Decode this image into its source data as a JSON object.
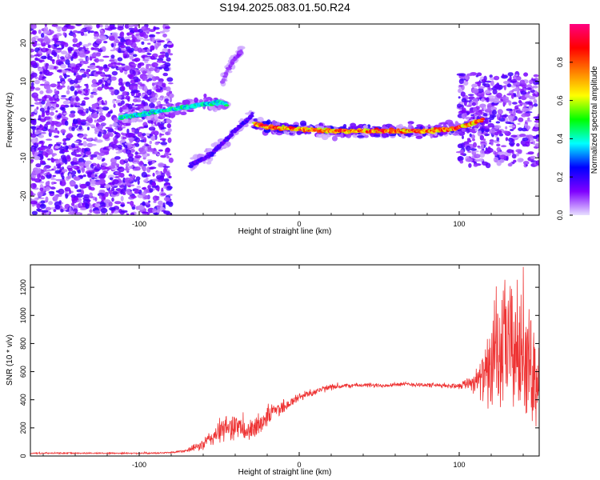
{
  "page": {
    "title": "S194.2025.083.01.50.R24"
  },
  "chart_data": [
    {
      "type": "heatmap",
      "xlabel": "Height of straight line (km)",
      "ylabel": "Frequency (Hz)",
      "xlim": [
        -168,
        150
      ],
      "ylim": [
        -25,
        25
      ],
      "x_ticks": [
        -100,
        0,
        100
      ],
      "y_ticks": [
        -20,
        -10,
        0,
        10,
        20
      ],
      "grid": false,
      "colorbar": {
        "label": "Normalized spectral amplitude",
        "range": [
          0,
          1
        ],
        "ticks": [
          0.0,
          0.2,
          0.4,
          0.6,
          0.8
        ],
        "tick_labels": [
          "0.0",
          "0.2",
          "0.4",
          "0.6",
          "0.8"
        ],
        "colors": [
          "#e8e0ff",
          "#7f00ff",
          "#0000ff",
          "#00ffff",
          "#00ff00",
          "#ffff00",
          "#ff7f00",
          "#ff0000",
          "#ff0080"
        ]
      },
      "features": [
        {
          "kind": "noise",
          "x_range": [
            -168,
            -80
          ],
          "f_range": [
            -25,
            25
          ],
          "amplitude": 0.15
        },
        {
          "kind": "noise",
          "x_range": [
            100,
            150
          ],
          "f_range": [
            -12,
            12
          ],
          "amplitude": 0.15
        },
        {
          "kind": "ridge",
          "x": [
            -112,
            -90,
            -75,
            -60,
            -50,
            -45
          ],
          "f": [
            0.5,
            2,
            3,
            4,
            4.5,
            4
          ],
          "amplitude": 0.5
        },
        {
          "kind": "ridge",
          "x": [
            -48,
            -42,
            -36
          ],
          "f": [
            10,
            15,
            18
          ],
          "amplitude": 0.12
        },
        {
          "kind": "ridge",
          "x": [
            -68,
            -55,
            -45,
            -38,
            -32,
            -29
          ],
          "f": [
            -12,
            -9,
            -5,
            -2,
            0,
            1.5
          ],
          "amplitude": 0.22
        },
        {
          "kind": "ridge",
          "x": [
            -28,
            -20,
            0,
            20,
            50,
            80,
            95,
            105,
            115
          ],
          "f": [
            -1,
            -2,
            -2.5,
            -3,
            -3,
            -3,
            -2.5,
            -1.5,
            0
          ],
          "amplitude": 0.95
        }
      ]
    },
    {
      "type": "line",
      "xlabel": "Height of straight line (km)",
      "ylabel": "SNR (10 * v/v)",
      "xlim": [
        -168,
        150
      ],
      "ylim": [
        0,
        1360
      ],
      "x_ticks": [
        -100,
        0,
        100
      ],
      "y_ticks": [
        0,
        200,
        400,
        600,
        800,
        1000,
        1200
      ],
      "grid": false,
      "series": [
        {
          "color": "#ee3333",
          "x": [
            -168,
            -150,
            -130,
            -110,
            -90,
            -80,
            -70,
            -60,
            -55,
            -50,
            -45,
            -40,
            -35,
            -30,
            -25,
            -20,
            -15,
            -10,
            -5,
            0,
            10,
            20,
            30,
            40,
            50,
            60,
            70,
            80,
            90,
            100,
            105,
            110,
            115,
            120,
            125,
            130,
            135,
            140,
            145,
            150
          ],
          "y": [
            20,
            20,
            20,
            20,
            20,
            25,
            40,
            80,
            130,
            170,
            200,
            220,
            180,
            170,
            230,
            280,
            330,
            350,
            380,
            420,
            460,
            490,
            500,
            505,
            500,
            510,
            510,
            505,
            500,
            500,
            520,
            530,
            560,
            620,
            700,
            800,
            760,
            720,
            620,
            550
          ],
          "amplitude": [
            5,
            5,
            5,
            5,
            5,
            6,
            10,
            40,
            60,
            80,
            90,
            90,
            70,
            80,
            80,
            70,
            60,
            50,
            40,
            30,
            25,
            20,
            15,
            15,
            15,
            15,
            15,
            15,
            15,
            20,
            40,
            80,
            150,
            300,
            400,
            450,
            450,
            400,
            350,
            300
          ]
        }
      ]
    }
  ]
}
